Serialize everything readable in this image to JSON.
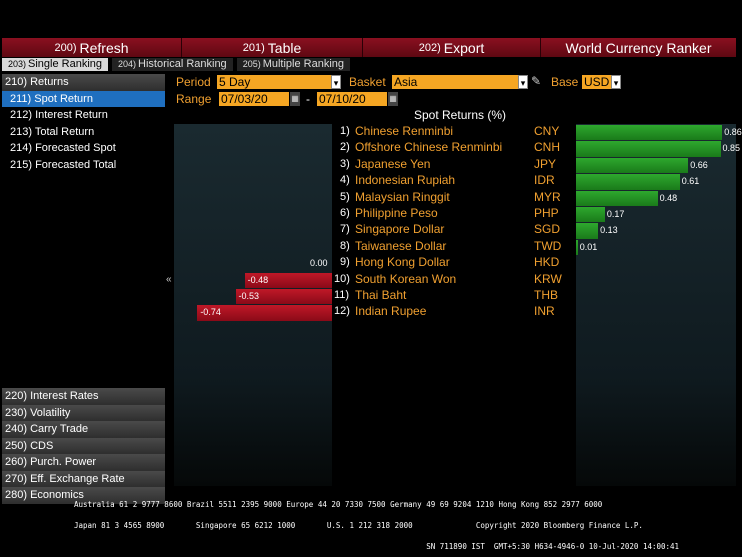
{
  "toolbar": {
    "refresh": {
      "num": "200)",
      "label": "Refresh"
    },
    "table": {
      "num": "201)",
      "label": "Table"
    },
    "export": {
      "num": "202)",
      "label": "Export"
    },
    "app_title": "World Currency Ranker"
  },
  "tabs": [
    {
      "num": "203)",
      "label": "Single Ranking"
    },
    {
      "num": "204)",
      "label": "Historical Ranking"
    },
    {
      "num": "205)",
      "label": "Multiple Ranking"
    }
  ],
  "sidebar": {
    "returns": "210) Returns",
    "items": [
      "211) Spot Return",
      "212) Interest Return",
      "213) Total Return",
      "214) Forecasted Spot",
      "215) Forecasted Total"
    ],
    "sections": [
      "220) Interest Rates",
      "230) Volatility",
      "240) Carry Trade",
      "250) CDS",
      "260) Purch. Power",
      "270) Eff. Exchange Rate",
      "280) Economics"
    ]
  },
  "controls": {
    "period_label": "Period",
    "period_value": "5 Day",
    "basket_label": "Basket",
    "basket_value": "Asia",
    "base_label": "Base",
    "base_value": "USD",
    "range_label": "Range",
    "range_from": "07/03/20",
    "range_sep": "-",
    "range_to": "07/10/20"
  },
  "chart_title": "Spot Returns (%)",
  "rows": [
    {
      "idx": "1)",
      "name": "Chinese Renminbi",
      "code": "CNY",
      "value": 0.86,
      "label": "0.86"
    },
    {
      "idx": "2)",
      "name": "Offshore Chinese Renminbi",
      "code": "CNH",
      "value": 0.85,
      "label": "0.85"
    },
    {
      "idx": "3)",
      "name": "Japanese Yen",
      "code": "JPY",
      "value": 0.66,
      "label": "0.66"
    },
    {
      "idx": "4)",
      "name": "Indonesian Rupiah",
      "code": "IDR",
      "value": 0.61,
      "label": "0.61"
    },
    {
      "idx": "5)",
      "name": "Malaysian Ringgit",
      "code": "MYR",
      "value": 0.48,
      "label": "0.48"
    },
    {
      "idx": "6)",
      "name": "Philippine Peso",
      "code": "PHP",
      "value": 0.17,
      "label": "0.17"
    },
    {
      "idx": "7)",
      "name": "Singapore Dollar",
      "code": "SGD",
      "value": 0.13,
      "label": "0.13"
    },
    {
      "idx": "8)",
      "name": "Taiwanese Dollar",
      "code": "TWD",
      "value": 0.01,
      "label": "0.01"
    },
    {
      "idx": "9)",
      "name": "Hong Kong Dollar",
      "code": "HKD",
      "value": 0.0,
      "label": "0.00"
    },
    {
      "idx": "10)",
      "name": "South Korean Won",
      "code": "KRW",
      "value": -0.48,
      "label": "-0.48"
    },
    {
      "idx": "11)",
      "name": "Thai Baht",
      "code": "THB",
      "value": -0.53,
      "label": "-0.53"
    },
    {
      "idx": "12)",
      "name": "Indian Rupee",
      "code": "INR",
      "value": -0.74,
      "label": "-0.74"
    }
  ],
  "footer": {
    "line1": "Australia 61 2 9777 8600 Brazil 5511 2395 9000 Europe 44 20 7330 7500 Germany 49 69 9204 1210 Hong Kong 852 2977 6000",
    "line2": "Japan 81 3 4565 8900       Singapore 65 6212 1000       U.S. 1 212 318 2000              Copyright 2020 Bloomberg Finance L.P.",
    "line3": "                                                                              SN 711890 IST  GMT+5:30 H634-4946-0 10-Jul-2020 14:00:41"
  }
}
